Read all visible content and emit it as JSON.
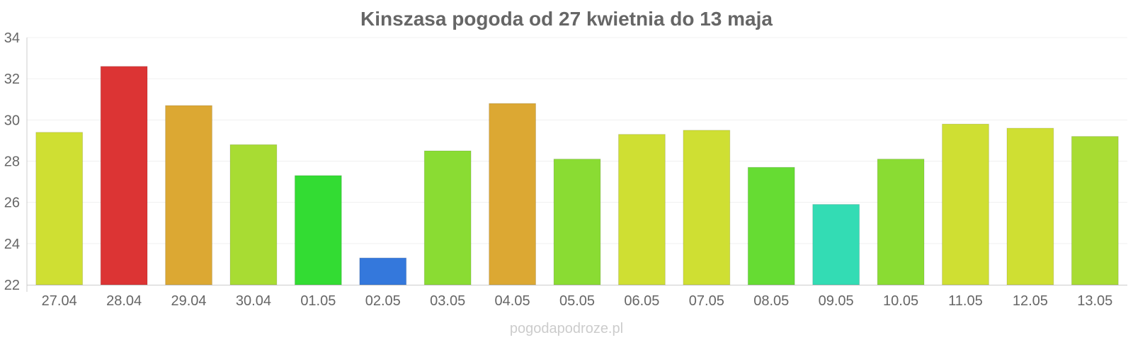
{
  "chart_data": {
    "type": "bar",
    "title": "Kinszasa pogoda od 27 kwietnia do 13 maja",
    "xlabel": "",
    "ylabel": "",
    "categories": [
      "27.04",
      "28.04",
      "29.04",
      "30.04",
      "01.05",
      "02.05",
      "03.05",
      "04.05",
      "05.05",
      "06.05",
      "07.05",
      "08.05",
      "09.05",
      "10.05",
      "11.05",
      "12.05",
      "13.05"
    ],
    "values": [
      29.4,
      32.6,
      30.7,
      28.8,
      27.3,
      23.3,
      28.5,
      30.8,
      28.1,
      29.3,
      29.5,
      27.7,
      25.9,
      28.1,
      29.8,
      29.6,
      29.2
    ],
    "bar_colors": [
      "#cfdf33",
      "#dc3434",
      "#dca833",
      "#a8dc33",
      "#33dc33",
      "#3478dc",
      "#8adc33",
      "#dca833",
      "#8adc33",
      "#cfdf33",
      "#cfdf33",
      "#66dc33",
      "#33dcb4",
      "#8adc33",
      "#cfdf33",
      "#cfdf33",
      "#a8dc33"
    ],
    "ylim": [
      22,
      34
    ],
    "yticks": [
      "22",
      "24",
      "26",
      "28",
      "30",
      "32",
      "34"
    ],
    "grid": true,
    "legend": "none"
  },
  "footer": {
    "source": "pogodapodroze.pl"
  }
}
